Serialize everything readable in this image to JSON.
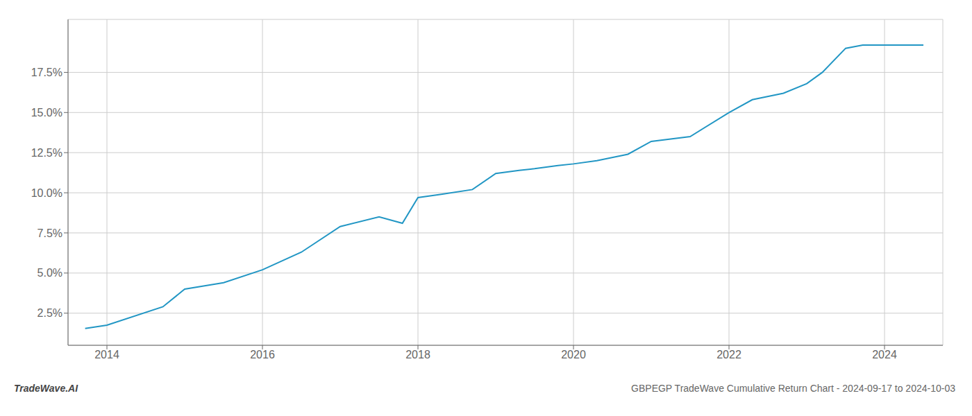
{
  "chart_data": {
    "type": "line",
    "x": [
      2013.72,
      2014.0,
      2014.72,
      2015.0,
      2015.5,
      2016.0,
      2016.5,
      2017.0,
      2017.5,
      2017.8,
      2018.0,
      2018.3,
      2018.7,
      2019.0,
      2019.3,
      2019.5,
      2019.8,
      2020.0,
      2020.3,
      2020.7,
      2021.0,
      2021.5,
      2022.0,
      2022.3,
      2022.7,
      2023.0,
      2023.2,
      2023.5,
      2023.72,
      2024.0,
      2024.5
    ],
    "values": [
      1.55,
      1.75,
      2.9,
      4.0,
      4.4,
      5.2,
      6.3,
      7.9,
      8.5,
      8.1,
      9.7,
      9.9,
      10.2,
      11.2,
      11.4,
      11.5,
      11.7,
      11.8,
      12.0,
      12.4,
      13.2,
      13.5,
      15.0,
      15.8,
      16.2,
      16.8,
      17.5,
      19.0,
      19.2,
      19.2,
      19.2
    ],
    "color": "#2196c4",
    "xlim": [
      2013.5,
      2024.75
    ],
    "ylim": [
      0.5,
      20.8
    ],
    "xticks": [
      2014,
      2016,
      2018,
      2020,
      2022,
      2024
    ],
    "yticks": [
      {
        "value": 2.5,
        "label": "2.5%"
      },
      {
        "value": 5.0,
        "label": "5.0%"
      },
      {
        "value": 7.5,
        "label": "7.5%"
      },
      {
        "value": 10.0,
        "label": "10.0%"
      },
      {
        "value": 12.5,
        "label": "12.5%"
      },
      {
        "value": 15.0,
        "label": "15.0%"
      },
      {
        "value": 17.5,
        "label": "17.5%"
      }
    ],
    "grid": true,
    "annotations": [
      "TradeWave.AI",
      "GBPEGP TradeWave Cumulative Return Chart - 2024-09-17 to 2024-10-03"
    ]
  }
}
